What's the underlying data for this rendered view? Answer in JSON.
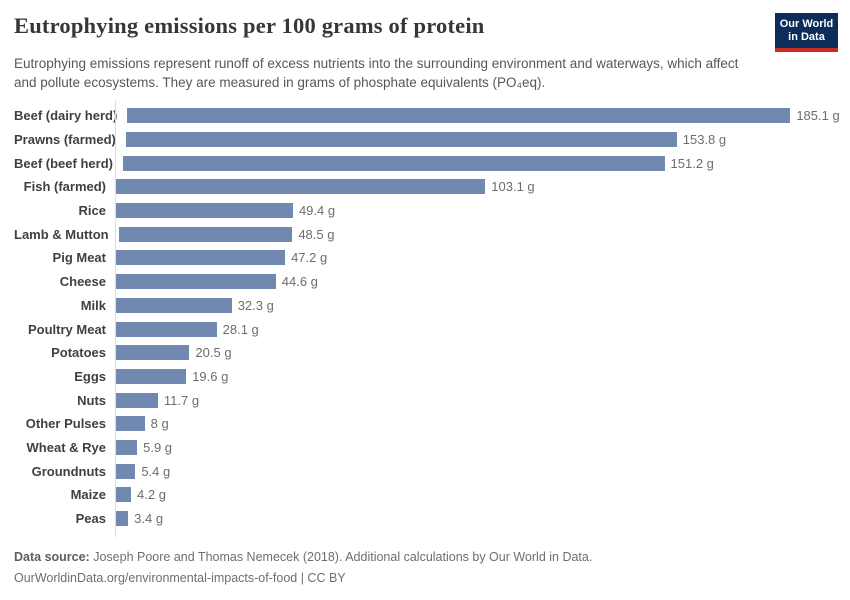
{
  "header": {
    "title": "Eutrophying emissions per 100 grams of protein",
    "subtitle": "Eutrophying emissions represent runoff of excess nutrients into the surrounding environment and waterways, which affect and pollute ecosystems. They are measured in grams of phosphate equivalents (PO₄eq).",
    "logo": {
      "line1": "Our World",
      "line2": "in Data",
      "background_color": "#0c2d5a",
      "accent_color": "#cb2b21"
    }
  },
  "chart_data": {
    "type": "bar",
    "orientation": "horizontal",
    "title": "Eutrophying emissions per 100 grams of protein",
    "unit": "g",
    "xlabel": "",
    "ylabel": "",
    "xlim": [
      0,
      185.1
    ],
    "grid": false,
    "legend": "none",
    "bar_color": "#7189b1",
    "categories": [
      "Beef (dairy herd)",
      "Prawns (farmed)",
      "Beef (beef herd)",
      "Fish (farmed)",
      "Rice",
      "Lamb & Mutton",
      "Pig Meat",
      "Cheese",
      "Milk",
      "Poultry Meat",
      "Potatoes",
      "Eggs",
      "Nuts",
      "Other Pulses",
      "Wheat & Rye",
      "Groundnuts",
      "Maize",
      "Peas"
    ],
    "values": [
      185.1,
      153.8,
      151.2,
      103.1,
      49.4,
      48.5,
      47.2,
      44.6,
      32.3,
      28.1,
      20.5,
      19.6,
      11.7,
      8,
      5.9,
      5.4,
      4.2,
      3.4
    ],
    "value_labels": [
      "185.1 g",
      "153.8 g",
      "151.2 g",
      "103.1 g",
      "49.4 g",
      "48.5 g",
      "47.2 g",
      "44.6 g",
      "32.3 g",
      "28.1 g",
      "20.5 g",
      "19.6 g",
      "11.7 g",
      "8 g",
      "5.9 g",
      "5.4 g",
      "4.2 g",
      "3.4 g"
    ]
  },
  "footer": {
    "source_label": "Data source:",
    "source_text": "Joseph Poore and Thomas Nemecek (2018). Additional calculations by Our World in Data.",
    "link_text": "OurWorldinData.org/environmental-impacts-of-food | CC BY"
  }
}
